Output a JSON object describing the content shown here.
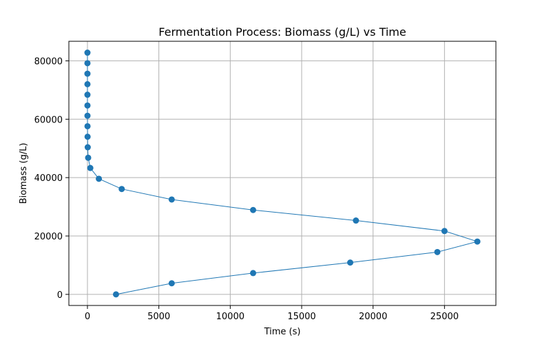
{
  "chart_data": {
    "type": "line",
    "title": "Fermentation Process: Biomass (g/L) vs Time",
    "xlabel": "Time (s)",
    "ylabel": "Biomass (g/L)",
    "xlim": [
      -1300,
      28600
    ],
    "ylim": [
      -3800,
      86700
    ],
    "xticks": [
      0,
      5000,
      10000,
      15000,
      20000,
      25000
    ],
    "yticks": [
      0,
      20000,
      40000,
      60000,
      80000
    ],
    "xtick_labels": [
      "0",
      "5000",
      "10000",
      "15000",
      "20000",
      "25000"
    ],
    "ytick_labels": [
      "0",
      "20000",
      "40000",
      "60000",
      "80000"
    ],
    "grid": true,
    "marker": "circle",
    "color": "#1f77b4",
    "series": [
      {
        "x": [
          2000,
          5900,
          11600,
          18400,
          24500,
          27300,
          25000,
          18800,
          11600,
          5900,
          2400,
          800,
          200,
          50,
          20,
          10,
          5,
          2,
          1,
          0,
          0,
          0,
          0,
          0
        ],
        "y": [
          0,
          3800,
          7300,
          10900,
          14500,
          18100,
          21700,
          25300,
          28900,
          32500,
          36100,
          39600,
          43300,
          46800,
          50400,
          54000,
          57600,
          61200,
          64700,
          68400,
          72000,
          75600,
          79200,
          82800
        ]
      }
    ]
  }
}
